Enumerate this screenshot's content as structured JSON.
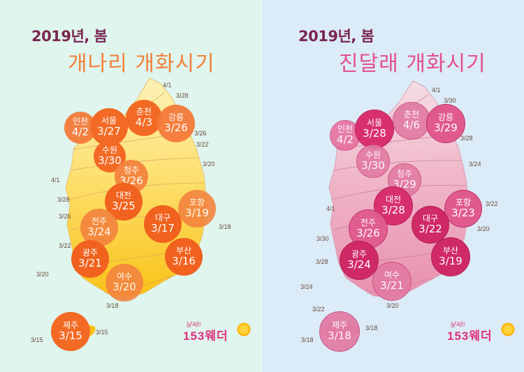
{
  "left": {
    "year_season": "2019년, 봄",
    "title": "개나리 개화시기",
    "title_color": "#f2813a",
    "cities": [
      {
        "name": "인천",
        "date": "4/2"
      },
      {
        "name": "서울",
        "date": "3/27"
      },
      {
        "name": "춘천",
        "date": "4/3"
      },
      {
        "name": "강릉",
        "date": "3/26"
      },
      {
        "name": "수원",
        "date": "3/30"
      },
      {
        "name": "청주",
        "date": "3/26"
      },
      {
        "name": "대전",
        "date": "3/25"
      },
      {
        "name": "포항",
        "date": "3/19"
      },
      {
        "name": "전주",
        "date": "3/24"
      },
      {
        "name": "대구",
        "date": "3/17"
      },
      {
        "name": "광주",
        "date": "3/21"
      },
      {
        "name": "부산",
        "date": "3/16"
      },
      {
        "name": "여수",
        "date": "3/20"
      },
      {
        "name": "제주",
        "date": "3/15"
      }
    ],
    "isolines": [
      "4/1",
      "3/28",
      "3/26",
      "3/22",
      "3/20",
      "4/1",
      "3/28",
      "3/26",
      "3/22",
      "3/20",
      "3/18",
      "3/18",
      "3/15",
      "3/15"
    ],
    "logo": {
      "small": "날씨!!",
      "big": "153웨더"
    }
  },
  "right": {
    "year_season": "2019년, 봄",
    "title": "진달래 개화시기",
    "title_color": "#e2508a",
    "cities": [
      {
        "name": "인천",
        "date": "4/2"
      },
      {
        "name": "서울",
        "date": "3/28"
      },
      {
        "name": "춘천",
        "date": "4/6"
      },
      {
        "name": "강릉",
        "date": "3/29"
      },
      {
        "name": "수원",
        "date": "3/30"
      },
      {
        "name": "청주",
        "date": "3/29"
      },
      {
        "name": "대전",
        "date": "3/28"
      },
      {
        "name": "포항",
        "date": "3/23"
      },
      {
        "name": "전주",
        "date": "3/26"
      },
      {
        "name": "대구",
        "date": "3/22"
      },
      {
        "name": "광주",
        "date": "3/24"
      },
      {
        "name": "부산",
        "date": "3/19"
      },
      {
        "name": "여수",
        "date": "3/21"
      },
      {
        "name": "제주",
        "date": "3/18"
      }
    ],
    "isolines": [
      "4/1",
      "3/30",
      "3/28",
      "3/24",
      "3/22",
      "3/20",
      "4/1",
      "3/30",
      "3/28",
      "3/24",
      "3/22",
      "3/20",
      "3/18",
      "3/18"
    ],
    "logo": {
      "small": "날씨!!",
      "big": "153웨더"
    }
  }
}
